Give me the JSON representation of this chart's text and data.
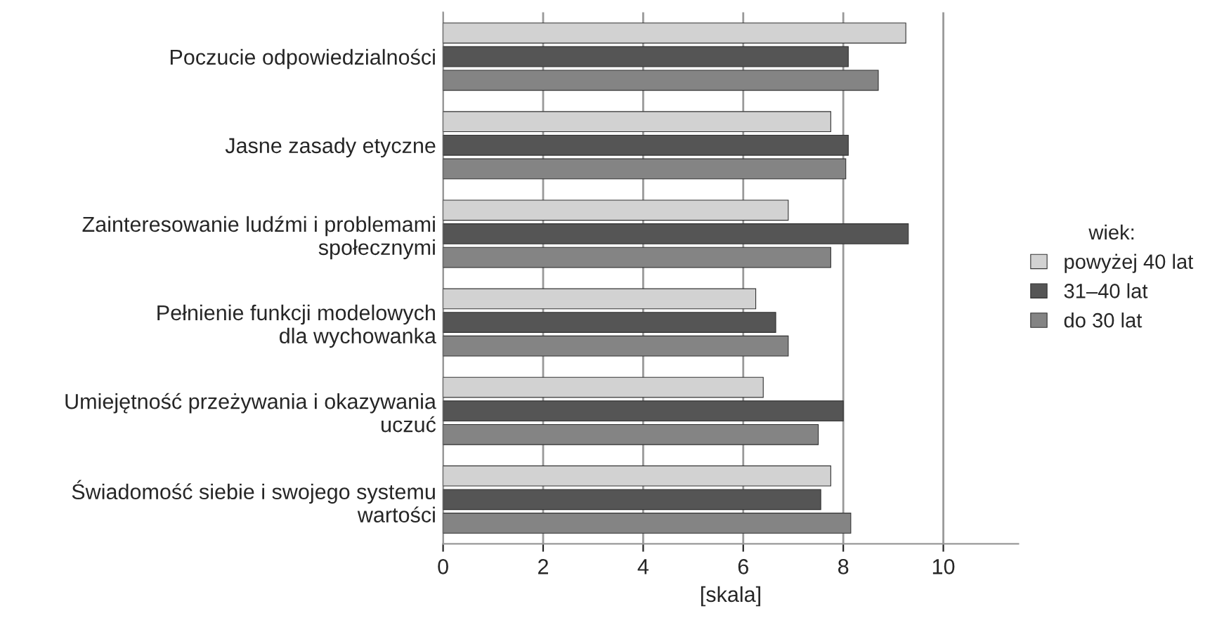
{
  "chart_data": {
    "type": "bar",
    "orientation": "horizontal",
    "xlabel": "[skala]",
    "legend_title": "wiek:",
    "legend": "right",
    "categories": [
      "Poczucie odpowiedzialności",
      "Jasne zasady etyczne",
      "Zainteresowanie ludźmi i problemami\nspołecznymi",
      "Pełnienie funkcji modelowych\ndla wychowanka",
      "Umiejętność przeżywania i okazywania\nuczuć",
      "Świadomość siebie i swojego systemu\nwartości"
    ],
    "series": [
      {
        "name": "powyżej 40 lat",
        "color": "#d2d2d2",
        "values": [
          9.25,
          7.75,
          6.9,
          6.25,
          6.4,
          7.75
        ]
      },
      {
        "name": "31–40 lat",
        "color": "#555555",
        "values": [
          8.1,
          8.1,
          9.3,
          6.65,
          8.0,
          7.55
        ]
      },
      {
        "name": "do 30 lat",
        "color": "#848484",
        "values": [
          8.7,
          8.05,
          7.75,
          6.9,
          7.5,
          8.15
        ]
      }
    ],
    "xlim": [
      0,
      11.5
    ],
    "xticks": [
      0,
      2,
      4,
      6,
      8,
      10
    ],
    "grid": "x"
  }
}
